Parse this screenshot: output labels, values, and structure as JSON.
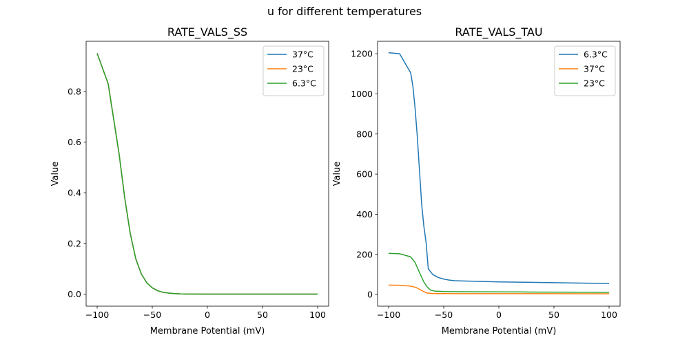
{
  "figure": {
    "title": "u for different temperatures"
  },
  "chart_data": [
    {
      "type": "line",
      "title": "RATE_VALS_SS",
      "xlabel": "Membrane Potential (mV)",
      "ylabel": "Value",
      "xlim": [
        -110,
        110
      ],
      "ylim": [
        -0.0475,
        0.9975
      ],
      "xticks": [
        -100,
        -50,
        0,
        50,
        100
      ],
      "xtick_labels": [
        "−100",
        "−50",
        "0",
        "50",
        "100"
      ],
      "yticks": [
        0.0,
        0.2,
        0.4,
        0.6,
        0.8
      ],
      "ytick_labels": [
        "0.0",
        "0.2",
        "0.4",
        "0.6",
        "0.8"
      ],
      "grid": false,
      "legend_position": "upper-right",
      "series": [
        {
          "name": "37°C",
          "color": "#1f77b4",
          "x": [
            -100,
            -95,
            -90,
            -85,
            -80,
            -75,
            -70,
            -65,
            -60,
            -55,
            -50,
            -45,
            -40,
            -35,
            -30,
            -25,
            -20,
            -10,
            0,
            25,
            50,
            75,
            100
          ],
          "y": [
            0.95,
            0.89,
            0.83,
            0.69,
            0.55,
            0.38,
            0.24,
            0.14,
            0.08,
            0.045,
            0.025,
            0.013,
            0.007,
            0.004,
            0.002,
            0.001,
            0.0005,
            0.0002,
            0.0,
            0.0,
            0.0,
            0.0,
            0.0
          ]
        },
        {
          "name": "23°C",
          "color": "#ff7f0e",
          "x": [
            -100,
            -95,
            -90,
            -85,
            -80,
            -75,
            -70,
            -65,
            -60,
            -55,
            -50,
            -45,
            -40,
            -35,
            -30,
            -25,
            -20,
            -10,
            0,
            25,
            50,
            75,
            100
          ],
          "y": [
            0.95,
            0.89,
            0.83,
            0.69,
            0.55,
            0.38,
            0.24,
            0.14,
            0.08,
            0.045,
            0.025,
            0.013,
            0.007,
            0.004,
            0.002,
            0.001,
            0.0005,
            0.0002,
            0.0,
            0.0,
            0.0,
            0.0,
            0.0
          ]
        },
        {
          "name": "6.3°C",
          "color": "#2ca02c",
          "x": [
            -100,
            -95,
            -90,
            -85,
            -80,
            -75,
            -70,
            -65,
            -60,
            -55,
            -50,
            -45,
            -40,
            -35,
            -30,
            -25,
            -20,
            -10,
            0,
            25,
            50,
            75,
            100
          ],
          "y": [
            0.95,
            0.89,
            0.83,
            0.69,
            0.55,
            0.38,
            0.24,
            0.14,
            0.08,
            0.045,
            0.025,
            0.013,
            0.007,
            0.004,
            0.002,
            0.001,
            0.0005,
            0.0002,
            0.0,
            0.0,
            0.0,
            0.0,
            0.0
          ]
        }
      ]
    },
    {
      "type": "line",
      "title": "RATE_VALS_TAU",
      "xlabel": "Membrane Potential (mV)",
      "ylabel": "Value",
      "xlim": [
        -110,
        110
      ],
      "ylim": [
        -58,
        1262
      ],
      "xticks": [
        -100,
        -50,
        0,
        50,
        100
      ],
      "xtick_labels": [
        "−100",
        "−50",
        "0",
        "50",
        "100"
      ],
      "yticks": [
        0,
        200,
        400,
        600,
        800,
        1000,
        1200
      ],
      "ytick_labels": [
        "0",
        "200",
        "400",
        "600",
        "800",
        "1000",
        "1200"
      ],
      "grid": false,
      "legend_position": "upper-right",
      "series": [
        {
          "name": "6.3°C",
          "color": "#1f77b4",
          "x": [
            -100,
            -90,
            -80,
            -78,
            -76,
            -74,
            -72,
            -70,
            -68,
            -66,
            -64,
            -60,
            -55,
            -50,
            -45,
            -40,
            -30,
            -20,
            0,
            25,
            50,
            75,
            100
          ],
          "y": [
            1205,
            1200,
            1105,
            1040,
            930,
            790,
            620,
            450,
            340,
            260,
            128,
            100,
            85,
            77,
            72,
            69,
            67,
            66,
            63,
            61,
            59,
            57,
            55
          ]
        },
        {
          "name": "37°C",
          "color": "#ff7f0e",
          "x": [
            -100,
            -90,
            -80,
            -75,
            -70,
            -65,
            -60,
            -50,
            -40,
            -20,
            0,
            25,
            50,
            75,
            100
          ],
          "y": [
            47,
            46,
            42,
            35,
            20,
            7,
            5,
            4.5,
            4.3,
            4.2,
            4,
            4,
            4,
            3.8,
            3.7
          ]
        },
        {
          "name": "23°C",
          "color": "#2ca02c",
          "x": [
            -100,
            -90,
            -80,
            -76,
            -72,
            -68,
            -65,
            -62,
            -58,
            -50,
            -40,
            -20,
            0,
            25,
            50,
            75,
            100
          ],
          "y": [
            205,
            203,
            188,
            160,
            110,
            62,
            38,
            22,
            17,
            15,
            14,
            13.5,
            13,
            12.5,
            12,
            11.5,
            11
          ]
        }
      ]
    }
  ]
}
